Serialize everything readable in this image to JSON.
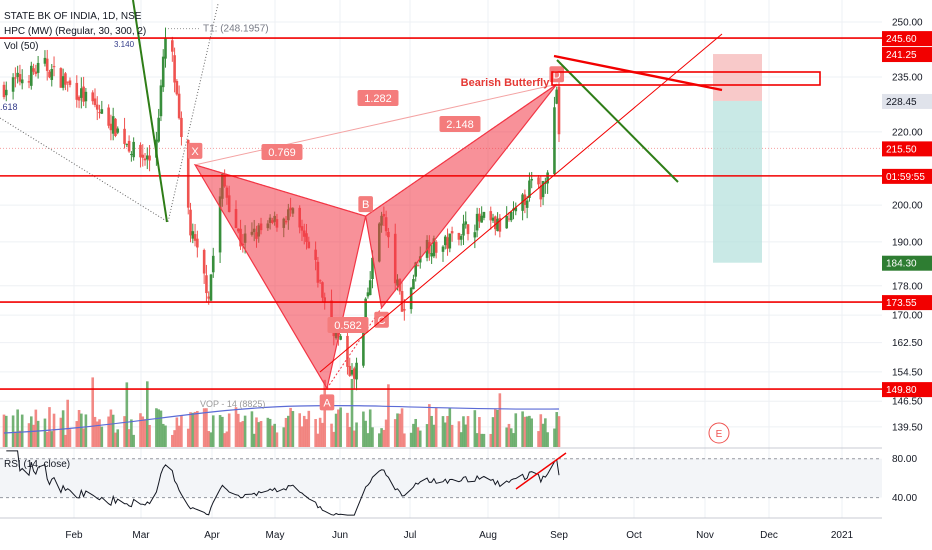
{
  "header": {
    "title": "STATE BK OF INDIA, 1D, NSE",
    "indicator_hpc": "HPC (MW) (Regular, 30, 300, 2)",
    "indicator_vol": "Vol (50)",
    "indicator_rsi": "RSI (14, close)"
  },
  "colors": {
    "bull": "#388e3c",
    "bear": "#ef5350",
    "line_red": "#f20000",
    "pattern_fill": "#f23645",
    "trend_green": "#2e7d17",
    "dashed_blue": "#5b6bd6",
    "target_green": "#b2dfdb",
    "stop_red": "#f8c9c9",
    "last_price": "#2e7d32"
  },
  "chart_data": {
    "type": "candlestick",
    "symbol": "STATE BK OF INDIA",
    "interval": "1D",
    "exchange": "NSE",
    "price_axis": {
      "range": [
        134,
        256
      ],
      "ticks": [
        250.0,
        235.0,
        220.0,
        200.0,
        190.0,
        178.0,
        170.0,
        162.5,
        154.5,
        146.5,
        139.5
      ]
    },
    "x_axis": {
      "labels": [
        "Feb",
        "Mar",
        "Apr",
        "May",
        "Jun",
        "Jul",
        "Aug",
        "Sep",
        "Oct",
        "Nov",
        "Dec",
        "2021"
      ]
    },
    "horizontal_levels": [
      {
        "value": 245.6,
        "label": "245.60"
      },
      {
        "value": 208.0,
        "label": "01:59:55"
      },
      {
        "value": 173.55,
        "label": "173.55"
      },
      {
        "value": 149.8,
        "label": "149.80"
      }
    ],
    "price_labels": [
      {
        "value": 241.25,
        "label": "241.25",
        "style": "red"
      },
      {
        "value": 228.45,
        "label": "228.45",
        "style": "gray"
      },
      {
        "value": 215.5,
        "label": "215.50",
        "style": "red"
      },
      {
        "value": 184.3,
        "label": "184.30",
        "style": "green"
      }
    ],
    "harmonic_pattern": {
      "name": "Bearish Butterfly",
      "points": [
        {
          "label": "X",
          "date": "2020-03-25",
          "price": 211
        },
        {
          "label": "A",
          "date": "2020-05-22",
          "price": 150
        },
        {
          "label": "B",
          "date": "2020-06-08",
          "price": 197
        },
        {
          "label": "C",
          "date": "2020-06-15",
          "price": 172
        },
        {
          "label": "D",
          "date": "2020-08-31",
          "price": 233
        }
      ],
      "ratios": [
        {
          "value": "0.769",
          "between": "XB"
        },
        {
          "value": "0.582",
          "between": "AC"
        },
        {
          "value": "1.282",
          "between": "XD"
        },
        {
          "value": "2.148",
          "between": "BD"
        }
      ]
    },
    "annotations": {
      "t1": "T1: (248.1957)",
      "small_value": "3.140",
      "fib_left": ".618",
      "vol_overlay": "VOP - 14 (8825)",
      "earnings_marker": "E"
    },
    "volume": {
      "pane": "Vol (50)"
    },
    "rsi": {
      "period": 14,
      "source": "close",
      "ticks": [
        80.0,
        40.0
      ]
    }
  }
}
